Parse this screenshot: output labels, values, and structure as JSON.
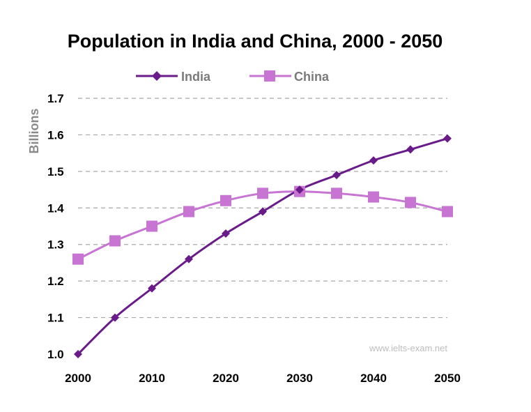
{
  "chart_data": {
    "type": "line",
    "title": "Population in India and China, 2000 - 2050",
    "xlabel": "",
    "ylabel": "Billions",
    "x": [
      2000,
      2005,
      2010,
      2015,
      2020,
      2025,
      2030,
      2035,
      2040,
      2045,
      2050
    ],
    "x_tick_labels": [
      "2000",
      "2010",
      "2020",
      "2030",
      "2040",
      "2050"
    ],
    "y_tick_labels": [
      "1.0",
      "1.1",
      "1.2",
      "1.3",
      "1.4",
      "1.5",
      "1.6",
      "1.7"
    ],
    "xlim": [
      2000,
      2050
    ],
    "ylim": [
      1.0,
      1.7
    ],
    "grid": true,
    "legend_position": "top-center",
    "series": [
      {
        "name": "India",
        "color": "#6a1b8a",
        "marker": "diamond",
        "values": [
          1.0,
          1.1,
          1.18,
          1.26,
          1.33,
          1.39,
          1.45,
          1.49,
          1.53,
          1.56,
          1.59
        ]
      },
      {
        "name": "China",
        "color": "#c774d3",
        "marker": "square",
        "values": [
          1.26,
          1.31,
          1.35,
          1.39,
          1.42,
          1.44,
          1.445,
          1.44,
          1.43,
          1.415,
          1.39
        ]
      }
    ],
    "watermark": "www.ielts-exam.net"
  }
}
